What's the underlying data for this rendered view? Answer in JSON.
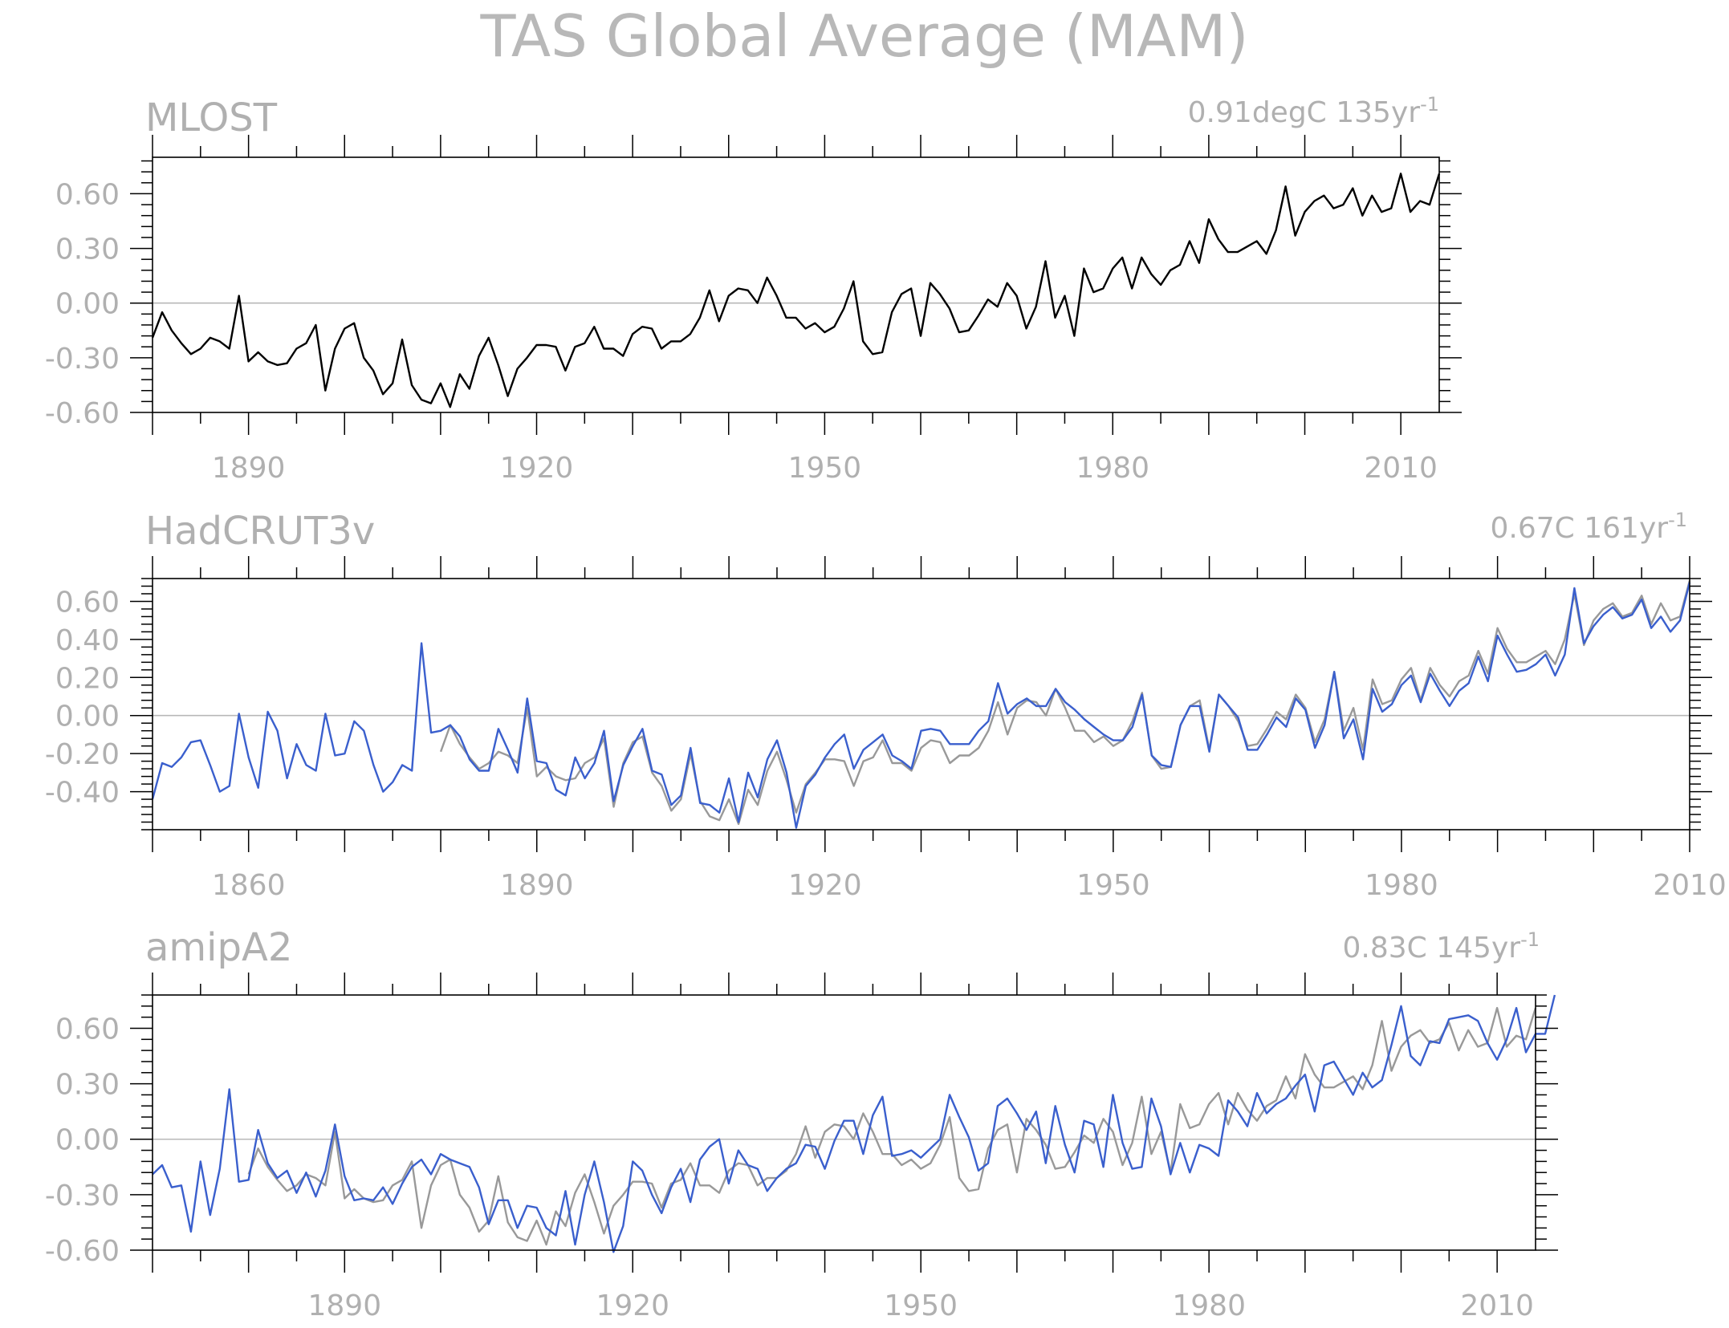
{
  "figure_title": "TAS Global Average (MAM)",
  "colors": {
    "obs_black": "#000000",
    "obs_gray": "#999999",
    "model_blue": "#3a5fcd",
    "zero_line": "#b8b8b8",
    "text": "#b0b0b0"
  },
  "chart_data": [
    {
      "type": "line",
      "title": "MLOST",
      "trend_label": "0.91degC 135yr",
      "trend_sup": "-1",
      "xlim": [
        1880,
        2014
      ],
      "ylim": [
        -0.6,
        0.8
      ],
      "yticks": [
        -0.6,
        -0.3,
        0.0,
        0.3,
        0.6
      ],
      "ytick_labels": [
        "-0.60",
        "-0.30",
        "0.00",
        "0.30",
        "0.60"
      ],
      "xticks": [
        1890,
        1920,
        1950,
        1980,
        2010
      ],
      "xtick_labels": [
        "1890",
        "1920",
        "1950",
        "1980",
        "2010"
      ],
      "series": [
        {
          "color": "#000000",
          "x_start": 1880,
          "values": [
            -0.19,
            -0.05,
            -0.15,
            -0.22,
            -0.28,
            -0.25,
            -0.19,
            -0.21,
            -0.25,
            0.04,
            -0.32,
            -0.27,
            -0.32,
            -0.34,
            -0.33,
            -0.25,
            -0.22,
            -0.12,
            -0.48,
            -0.25,
            -0.14,
            -0.11,
            -0.3,
            -0.37,
            -0.5,
            -0.44,
            -0.2,
            -0.45,
            -0.53,
            -0.55,
            -0.44,
            -0.57,
            -0.39,
            -0.47,
            -0.29,
            -0.19,
            -0.34,
            -0.51,
            -0.36,
            -0.3,
            -0.23,
            -0.23,
            -0.24,
            -0.37,
            -0.24,
            -0.22,
            -0.13,
            -0.25,
            -0.25,
            -0.29,
            -0.17,
            -0.13,
            -0.14,
            -0.25,
            -0.21,
            -0.21,
            -0.17,
            -0.08,
            0.07,
            -0.1,
            0.04,
            0.08,
            0.07,
            0.0,
            0.14,
            0.04,
            -0.08,
            -0.08,
            -0.14,
            -0.11,
            -0.16,
            -0.13,
            -0.03,
            0.12,
            -0.21,
            -0.28,
            -0.27,
            -0.05,
            0.05,
            0.08,
            -0.18,
            0.11,
            0.05,
            -0.03,
            -0.16,
            -0.15,
            -0.07,
            0.02,
            -0.02,
            0.11,
            0.04,
            -0.14,
            -0.02,
            0.23,
            -0.08,
            0.04,
            -0.18,
            0.19,
            0.06,
            0.08,
            0.19,
            0.25,
            0.08,
            0.25,
            0.16,
            0.1,
            0.18,
            0.21,
            0.34,
            0.22,
            0.46,
            0.35,
            0.28,
            0.28,
            0.31,
            0.34,
            0.27,
            0.4,
            0.64,
            0.37,
            0.5,
            0.56,
            0.59,
            0.52,
            0.54,
            0.63,
            0.48,
            0.59,
            0.5,
            0.52,
            0.71,
            0.5,
            0.56,
            0.54,
            0.71
          ]
        }
      ]
    },
    {
      "type": "line",
      "title": "HadCRUT3v",
      "trend_label": "0.67C 161yr",
      "trend_sup": "-1",
      "xlim": [
        1850,
        2010
      ],
      "ylim": [
        -0.6,
        0.72
      ],
      "yticks": [
        -0.4,
        -0.2,
        0.0,
        0.2,
        0.4,
        0.6
      ],
      "ytick_labels": [
        "-0.40",
        "-0.20",
        "0.00",
        "0.20",
        "0.40",
        "0.60"
      ],
      "xticks": [
        1860,
        1890,
        1920,
        1950,
        1980,
        2010
      ],
      "xtick_labels": [
        "1860",
        "1890",
        "1920",
        "1950",
        "1980",
        "2010"
      ],
      "series": [
        {
          "color": "#999999",
          "x_start": 1880,
          "values": [
            -0.19,
            -0.05,
            -0.15,
            -0.22,
            -0.28,
            -0.25,
            -0.19,
            -0.21,
            -0.25,
            0.04,
            -0.32,
            -0.27,
            -0.32,
            -0.34,
            -0.33,
            -0.25,
            -0.22,
            -0.12,
            -0.48,
            -0.25,
            -0.14,
            -0.11,
            -0.3,
            -0.37,
            -0.5,
            -0.44,
            -0.2,
            -0.45,
            -0.53,
            -0.55,
            -0.44,
            -0.57,
            -0.39,
            -0.47,
            -0.29,
            -0.19,
            -0.34,
            -0.51,
            -0.36,
            -0.3,
            -0.23,
            -0.23,
            -0.24,
            -0.37,
            -0.24,
            -0.22,
            -0.13,
            -0.25,
            -0.25,
            -0.29,
            -0.17,
            -0.13,
            -0.14,
            -0.25,
            -0.21,
            -0.21,
            -0.17,
            -0.08,
            0.07,
            -0.1,
            0.04,
            0.08,
            0.07,
            0.0,
            0.14,
            0.04,
            -0.08,
            -0.08,
            -0.14,
            -0.11,
            -0.16,
            -0.13,
            -0.03,
            0.12,
            -0.21,
            -0.28,
            -0.27,
            -0.05,
            0.05,
            0.08,
            -0.18,
            0.11,
            0.05,
            -0.03,
            -0.16,
            -0.15,
            -0.07,
            0.02,
            -0.02,
            0.11,
            0.04,
            -0.14,
            -0.02,
            0.23,
            -0.08,
            0.04,
            -0.18,
            0.19,
            0.06,
            0.08,
            0.19,
            0.25,
            0.08,
            0.25,
            0.16,
            0.1,
            0.18,
            0.21,
            0.34,
            0.22,
            0.46,
            0.35,
            0.28,
            0.28,
            0.31,
            0.34,
            0.27,
            0.4,
            0.64,
            0.37,
            0.5,
            0.56,
            0.59,
            0.52,
            0.54,
            0.63,
            0.48,
            0.59,
            0.5,
            0.52,
            0.71
          ]
        },
        {
          "color": "#3a5fcd",
          "x_start": 1850,
          "values": [
            -0.44,
            -0.25,
            -0.27,
            -0.22,
            -0.14,
            -0.13,
            -0.26,
            -0.4,
            -0.37,
            0.01,
            -0.22,
            -0.38,
            0.02,
            -0.08,
            -0.33,
            -0.15,
            -0.26,
            -0.29,
            0.01,
            -0.21,
            -0.2,
            -0.03,
            -0.08,
            -0.26,
            -0.4,
            -0.35,
            -0.26,
            -0.29,
            0.38,
            -0.09,
            -0.08,
            -0.05,
            -0.11,
            -0.23,
            -0.29,
            -0.29,
            -0.07,
            -0.18,
            -0.3,
            0.09,
            -0.24,
            -0.25,
            -0.39,
            -0.42,
            -0.22,
            -0.33,
            -0.25,
            -0.08,
            -0.45,
            -0.26,
            -0.16,
            -0.07,
            -0.29,
            -0.31,
            -0.47,
            -0.42,
            -0.17,
            -0.46,
            -0.47,
            -0.51,
            -0.33,
            -0.56,
            -0.3,
            -0.43,
            -0.23,
            -0.13,
            -0.3,
            -0.59,
            -0.37,
            -0.31,
            -0.22,
            -0.15,
            -0.1,
            -0.28,
            -0.18,
            -0.14,
            -0.1,
            -0.21,
            -0.24,
            -0.28,
            -0.08,
            -0.07,
            -0.08,
            -0.15,
            -0.15,
            -0.15,
            -0.08,
            -0.03,
            0.17,
            0.01,
            0.06,
            0.09,
            0.05,
            0.05,
            0.14,
            0.07,
            0.03,
            -0.02,
            -0.06,
            -0.1,
            -0.13,
            -0.13,
            -0.06,
            0.11,
            -0.21,
            -0.26,
            -0.27,
            -0.05,
            0.05,
            0.05,
            -0.19,
            0.11,
            0.05,
            -0.01,
            -0.18,
            -0.18,
            -0.1,
            -0.01,
            -0.06,
            0.09,
            0.03,
            -0.17,
            -0.05,
            0.23,
            -0.12,
            -0.02,
            -0.23,
            0.14,
            0.02,
            0.06,
            0.16,
            0.21,
            0.07,
            0.22,
            0.13,
            0.05,
            0.13,
            0.17,
            0.31,
            0.18,
            0.42,
            0.32,
            0.23,
            0.24,
            0.27,
            0.32,
            0.21,
            0.32,
            0.67,
            0.38,
            0.47,
            0.53,
            0.57,
            0.51,
            0.53,
            0.61,
            0.46,
            0.52,
            0.44,
            0.5,
            0.7
          ]
        }
      ]
    },
    {
      "type": "line",
      "title": "amipA2",
      "trend_label": "0.83C 145yr",
      "trend_sup": "-1",
      "xlim": [
        1870,
        2014
      ],
      "ylim": [
        -0.6,
        0.78
      ],
      "yticks": [
        -0.6,
        -0.3,
        0.0,
        0.3,
        0.6
      ],
      "ytick_labels": [
        "-0.60",
        "-0.30",
        "0.00",
        "0.30",
        "0.60"
      ],
      "xticks": [
        1890,
        1920,
        1950,
        1980,
        2010
      ],
      "xtick_labels": [
        "1890",
        "1920",
        "1950",
        "1980",
        "2010"
      ],
      "series": [
        {
          "color": "#999999",
          "x_start": 1880,
          "values": [
            -0.19,
            -0.05,
            -0.15,
            -0.22,
            -0.28,
            -0.25,
            -0.19,
            -0.21,
            -0.25,
            0.04,
            -0.32,
            -0.27,
            -0.32,
            -0.34,
            -0.33,
            -0.25,
            -0.22,
            -0.12,
            -0.48,
            -0.25,
            -0.14,
            -0.11,
            -0.3,
            -0.37,
            -0.5,
            -0.44,
            -0.2,
            -0.45,
            -0.53,
            -0.55,
            -0.44,
            -0.57,
            -0.39,
            -0.47,
            -0.29,
            -0.19,
            -0.34,
            -0.51,
            -0.36,
            -0.3,
            -0.23,
            -0.23,
            -0.24,
            -0.37,
            -0.24,
            -0.22,
            -0.13,
            -0.25,
            -0.25,
            -0.29,
            -0.17,
            -0.13,
            -0.14,
            -0.25,
            -0.21,
            -0.21,
            -0.17,
            -0.08,
            0.07,
            -0.1,
            0.04,
            0.08,
            0.07,
            0.0,
            0.14,
            0.04,
            -0.08,
            -0.08,
            -0.14,
            -0.11,
            -0.16,
            -0.13,
            -0.03,
            0.12,
            -0.21,
            -0.28,
            -0.27,
            -0.05,
            0.05,
            0.08,
            -0.18,
            0.11,
            0.05,
            -0.03,
            -0.16,
            -0.15,
            -0.07,
            0.02,
            -0.02,
            0.11,
            0.04,
            -0.14,
            -0.02,
            0.23,
            -0.08,
            0.04,
            -0.18,
            0.19,
            0.06,
            0.08,
            0.19,
            0.25,
            0.08,
            0.25,
            0.16,
            0.1,
            0.18,
            0.21,
            0.34,
            0.22,
            0.46,
            0.35,
            0.28,
            0.28,
            0.31,
            0.34,
            0.27,
            0.4,
            0.64,
            0.37,
            0.5,
            0.56,
            0.59,
            0.52,
            0.54,
            0.63,
            0.48,
            0.59,
            0.5,
            0.52,
            0.71,
            0.5,
            0.56,
            0.54,
            0.71
          ]
        },
        {
          "color": "#3a5fcd",
          "x_start": 1870,
          "values": [
            -0.19,
            -0.14,
            -0.26,
            -0.25,
            -0.5,
            -0.12,
            -0.41,
            -0.16,
            0.27,
            -0.23,
            -0.22,
            0.05,
            -0.13,
            -0.21,
            -0.17,
            -0.29,
            -0.18,
            -0.31,
            -0.17,
            0.08,
            -0.2,
            -0.33,
            -0.32,
            -0.33,
            -0.26,
            -0.35,
            -0.24,
            -0.15,
            -0.11,
            -0.19,
            -0.08,
            -0.11,
            -0.13,
            -0.15,
            -0.26,
            -0.46,
            -0.33,
            -0.33,
            -0.48,
            -0.36,
            -0.37,
            -0.48,
            -0.52,
            -0.28,
            -0.57,
            -0.3,
            -0.12,
            -0.34,
            -0.61,
            -0.47,
            -0.12,
            -0.17,
            -0.3,
            -0.4,
            -0.26,
            -0.16,
            -0.34,
            -0.11,
            -0.04,
            0.0,
            -0.24,
            -0.06,
            -0.14,
            -0.16,
            -0.28,
            -0.21,
            -0.16,
            -0.13,
            -0.03,
            -0.04,
            -0.16,
            -0.01,
            0.1,
            0.1,
            -0.08,
            0.13,
            0.23,
            -0.09,
            -0.08,
            -0.06,
            -0.1,
            -0.05,
            0.0,
            0.24,
            0.12,
            0.01,
            -0.17,
            -0.13,
            0.18,
            0.22,
            0.14,
            0.05,
            0.15,
            -0.13,
            0.18,
            -0.03,
            -0.18,
            0.1,
            0.08,
            -0.15,
            0.24,
            -0.02,
            -0.16,
            -0.15,
            0.22,
            0.07,
            -0.19,
            -0.02,
            -0.18,
            -0.03,
            -0.05,
            -0.09,
            0.21,
            0.15,
            0.07,
            0.25,
            0.14,
            0.19,
            0.22,
            0.29,
            0.35,
            0.15,
            0.4,
            0.42,
            0.33,
            0.24,
            0.36,
            0.28,
            0.32,
            0.51,
            0.72,
            0.45,
            0.4,
            0.53,
            0.52,
            0.65,
            0.66,
            0.67,
            0.64,
            0.52,
            0.43,
            0.54,
            0.71,
            0.47,
            0.57,
            0.57,
            0.78
          ]
        }
      ]
    }
  ]
}
